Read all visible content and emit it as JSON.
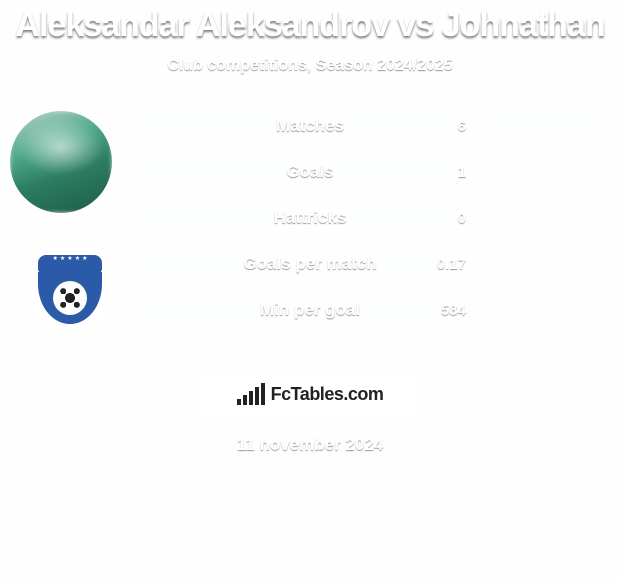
{
  "background": "#fefefe",
  "text_color": "#ffffff",
  "title": "Aleksandar Aleksandrov vs Johnathan",
  "title_fontsize": 34,
  "subtitle": "Club competitions, Season 2024/2025",
  "subtitle_fontsize": 16,
  "left_pill_color": "#fdfefe",
  "right_pill_color": "#fdfefe",
  "right_pill_color_dim": "#fefefe",
  "row_spacing": 46,
  "rows": [
    {
      "label": "Matches",
      "left_value": "6",
      "right_value": "",
      "right_bg": "#fdfefe"
    },
    {
      "label": "Goals",
      "left_value": "1",
      "right_value": "",
      "right_bg": "#fefefe"
    },
    {
      "label": "Hattricks",
      "left_value": "0",
      "right_value": "",
      "right_bg": null
    },
    {
      "label": "Goals per match",
      "left_value": "0.17",
      "right_value": "",
      "right_bg": null
    },
    {
      "label": "Min per goal",
      "left_value": "584",
      "right_value": "",
      "right_bg": null
    }
  ],
  "footer_brand": "FcTables.com",
  "date_text": "11 november 2024",
  "avatar_player_bg": "#4fa88a",
  "club_badge_primary": "#2a5aa8"
}
